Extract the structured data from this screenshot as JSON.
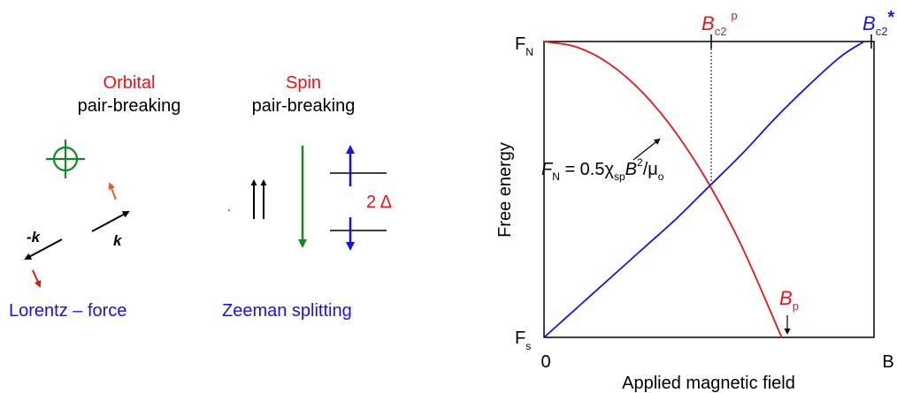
{
  "colors": {
    "red": "#e8141c",
    "orange_red": "#f05a1e",
    "blue": "#1414e6",
    "green": "#128a1e",
    "black": "#000000"
  },
  "left_panel": {
    "orbital_title": "Orbital",
    "orbital_subtitle": "pair-breaking",
    "spin_title": "Spin",
    "spin_subtitle": "pair-breaking",
    "label_neg_k": "-k",
    "label_k": "k",
    "lorentz_caption": "Lorentz – force",
    "zeeman_caption": "Zeeman splitting",
    "splitting_label": "2 Δ",
    "icons": [
      "crosshair-icon",
      "parallel-up-arrows-icon",
      "spin-down-arrow-icon",
      "spin-up-arrow-icon",
      "momentum-arrow-icon",
      "force-arrow-icon"
    ]
  },
  "right_panel": {
    "ylabel": "Free energy",
    "xlabel": "Applied magnetic field",
    "y_top_label": "F",
    "y_top_sub": "N",
    "y_bottom_label": "F",
    "y_bottom_sub": "s",
    "x_zero_label": "0",
    "x_end_label": "B",
    "bc2p_main": "B",
    "bc2p_sub": "c2",
    "bc2p_sup": "p",
    "bc2star_main": "B",
    "bc2star_sub": "c2",
    "bc2star_sup": "*",
    "bp_main": "B",
    "bp_sub": "p",
    "eq_F": "F",
    "eq_F_sub": "N",
    "eq_mid": " = 0.5χ",
    "eq_chi_sub": "sp",
    "eq_B": "B",
    "eq_sup": "2",
    "eq_tail": "/μ",
    "eq_tail_sub": "o"
  },
  "chart_data": {
    "type": "line",
    "title": "",
    "xlabel": "Applied magnetic field",
    "ylabel": "Free energy",
    "xlim": [
      0,
      1.0
    ],
    "ylim": [
      0,
      1.0
    ],
    "y_ticks": [
      "F_s",
      "F_N"
    ],
    "x_ticks": [
      "0",
      "B"
    ],
    "markers": [
      {
        "label": "B_c2^p",
        "x": 0.5
      },
      {
        "label": "B_c2*",
        "x": 0.97
      },
      {
        "label": "B_p",
        "x": 0.72
      }
    ],
    "series": [
      {
        "color": "#e8141c",
        "x": [
          0.0,
          0.1,
          0.2,
          0.3,
          0.4,
          0.5,
          0.6,
          0.72
        ],
        "y": [
          1.0,
          0.981,
          0.923,
          0.826,
          0.691,
          0.518,
          0.306,
          0.0
        ]
      },
      {
        "color": "#1414e6",
        "x": [
          0.0,
          0.1,
          0.2,
          0.3,
          0.4,
          0.5,
          0.6,
          0.7,
          0.8,
          0.9,
          0.97
        ],
        "y": [
          0.0,
          0.1,
          0.2,
          0.3,
          0.4,
          0.51,
          0.62,
          0.74,
          0.85,
          0.95,
          1.0
        ]
      }
    ]
  }
}
